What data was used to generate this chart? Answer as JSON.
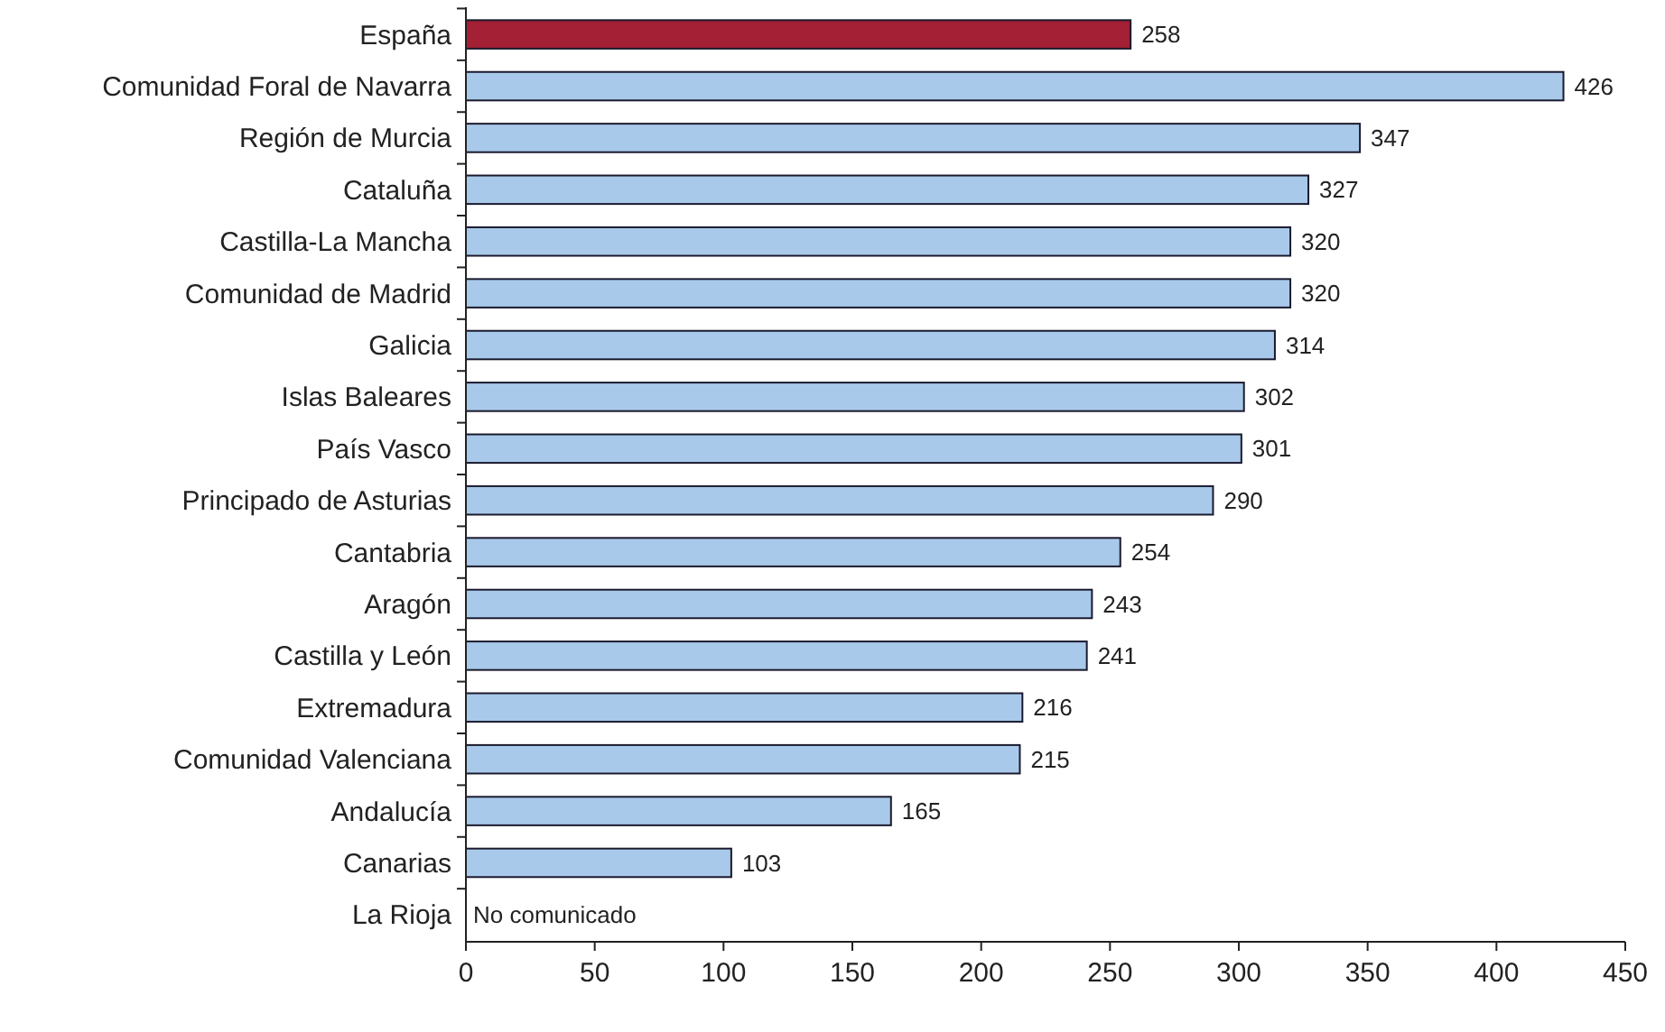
{
  "chart_data": {
    "type": "bar",
    "orientation": "horizontal",
    "categories": [
      "España",
      "Comunidad Foral de Navarra",
      "Región de Murcia",
      "Cataluña",
      "Castilla-La Mancha",
      "Comunidad de Madrid",
      "Galicia",
      "Islas Baleares",
      "País Vasco",
      "Principado de Asturias",
      "Cantabria",
      "Aragón",
      "Castilla y León",
      "Extremadura",
      "Comunidad Valenciana",
      "Andalucía",
      "Canarias",
      "La Rioja"
    ],
    "values": [
      258,
      426,
      347,
      327,
      320,
      320,
      314,
      302,
      301,
      290,
      254,
      243,
      241,
      216,
      215,
      165,
      103,
      null
    ],
    "colors": [
      "#a32035",
      "#a9c9ea",
      "#a9c9ea",
      "#a9c9ea",
      "#a9c9ea",
      "#a9c9ea",
      "#a9c9ea",
      "#a9c9ea",
      "#a9c9ea",
      "#a9c9ea",
      "#a9c9ea",
      "#a9c9ea",
      "#a9c9ea",
      "#a9c9ea",
      "#a9c9ea",
      "#a9c9ea",
      "#a9c9ea",
      null
    ],
    "xlim": [
      0,
      450
    ],
    "xticks": [
      0,
      50,
      100,
      150,
      200,
      250,
      300,
      350,
      400,
      450
    ],
    "data_labels": true,
    "annotations": [
      "No comunicado"
    ]
  }
}
